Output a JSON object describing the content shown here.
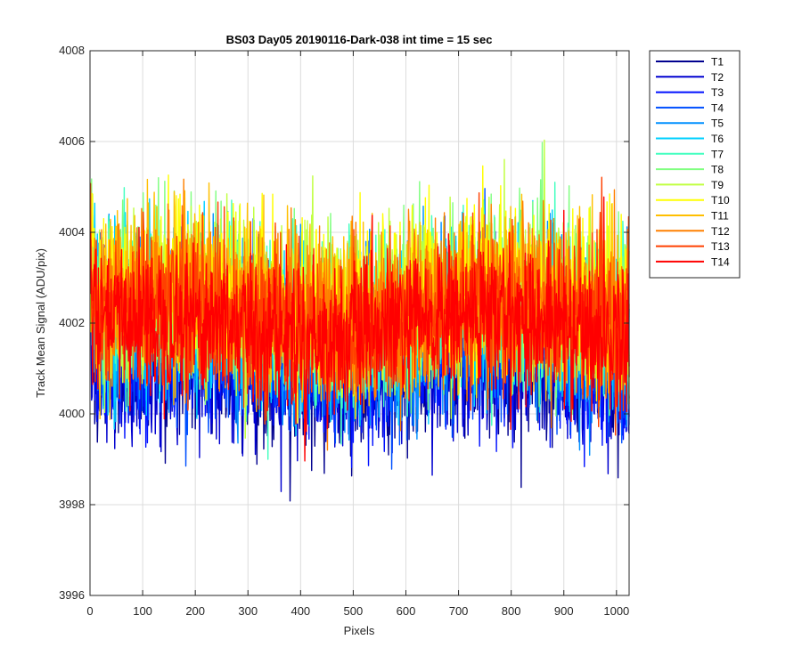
{
  "chart_data": {
    "type": "line",
    "title": "BS03 Day05 20190116-Dark-038 int time = 15 sec",
    "xlabel": "Pixels",
    "ylabel": "Track Mean Signal (ADU/pix)",
    "xlim": [
      0,
      1024
    ],
    "ylim": [
      3996,
      4008
    ],
    "xticks": [
      0,
      100,
      200,
      300,
      400,
      500,
      600,
      700,
      800,
      900,
      1000
    ],
    "yticks": [
      3996,
      3998,
      4000,
      4002,
      4004,
      4006,
      4008
    ],
    "grid": true,
    "legend_position": "outside-top-right",
    "x_range": [
      1,
      1024
    ],
    "series": [
      {
        "name": "T1",
        "color": "#00008f",
        "mean": 4001.0,
        "spread": 0.85,
        "min": 3997.7,
        "max": 4004.4
      },
      {
        "name": "T2",
        "color": "#0000cf",
        "mean": 4001.1,
        "spread": 0.85,
        "min": 3997.9,
        "max": 4004.5
      },
      {
        "name": "T3",
        "color": "#0010ff",
        "mean": 4001.3,
        "spread": 0.85,
        "min": 3998.3,
        "max": 4004.7
      },
      {
        "name": "T4",
        "color": "#0050ff",
        "mean": 4001.5,
        "spread": 0.85,
        "min": 3998.5,
        "max": 4005.2
      },
      {
        "name": "T5",
        "color": "#0090ff",
        "mean": 4001.8,
        "spread": 0.9,
        "min": 3998.7,
        "max": 4006.4
      },
      {
        "name": "T6",
        "color": "#00d0ff",
        "mean": 4002.0,
        "spread": 0.9,
        "min": 3998.8,
        "max": 4006.9
      },
      {
        "name": "T7",
        "color": "#40ffbf",
        "mean": 4002.2,
        "spread": 0.9,
        "min": 3999.0,
        "max": 4007.2
      },
      {
        "name": "T8",
        "color": "#80ff80",
        "mean": 4002.4,
        "spread": 0.9,
        "min": 3999.2,
        "max": 4006.5
      },
      {
        "name": "T9",
        "color": "#c0ff40",
        "mean": 4002.5,
        "spread": 0.9,
        "min": 3999.4,
        "max": 4006.3
      },
      {
        "name": "T10",
        "color": "#ffff00",
        "mean": 4002.5,
        "spread": 0.9,
        "min": 3999.4,
        "max": 4006.1
      },
      {
        "name": "T11",
        "color": "#ffbf00",
        "mean": 4002.4,
        "spread": 0.9,
        "min": 3999.3,
        "max": 4006.8
      },
      {
        "name": "T12",
        "color": "#ff8000",
        "mean": 4002.3,
        "spread": 0.9,
        "min": 3999.2,
        "max": 4006.4
      },
      {
        "name": "T13",
        "color": "#ff4000",
        "mean": 4002.1,
        "spread": 0.85,
        "min": 3999.0,
        "max": 4005.8
      },
      {
        "name": "T14",
        "color": "#ff0000",
        "mean": 4001.9,
        "spread": 0.8,
        "min": 3998.8,
        "max": 4005.6
      }
    ]
  }
}
